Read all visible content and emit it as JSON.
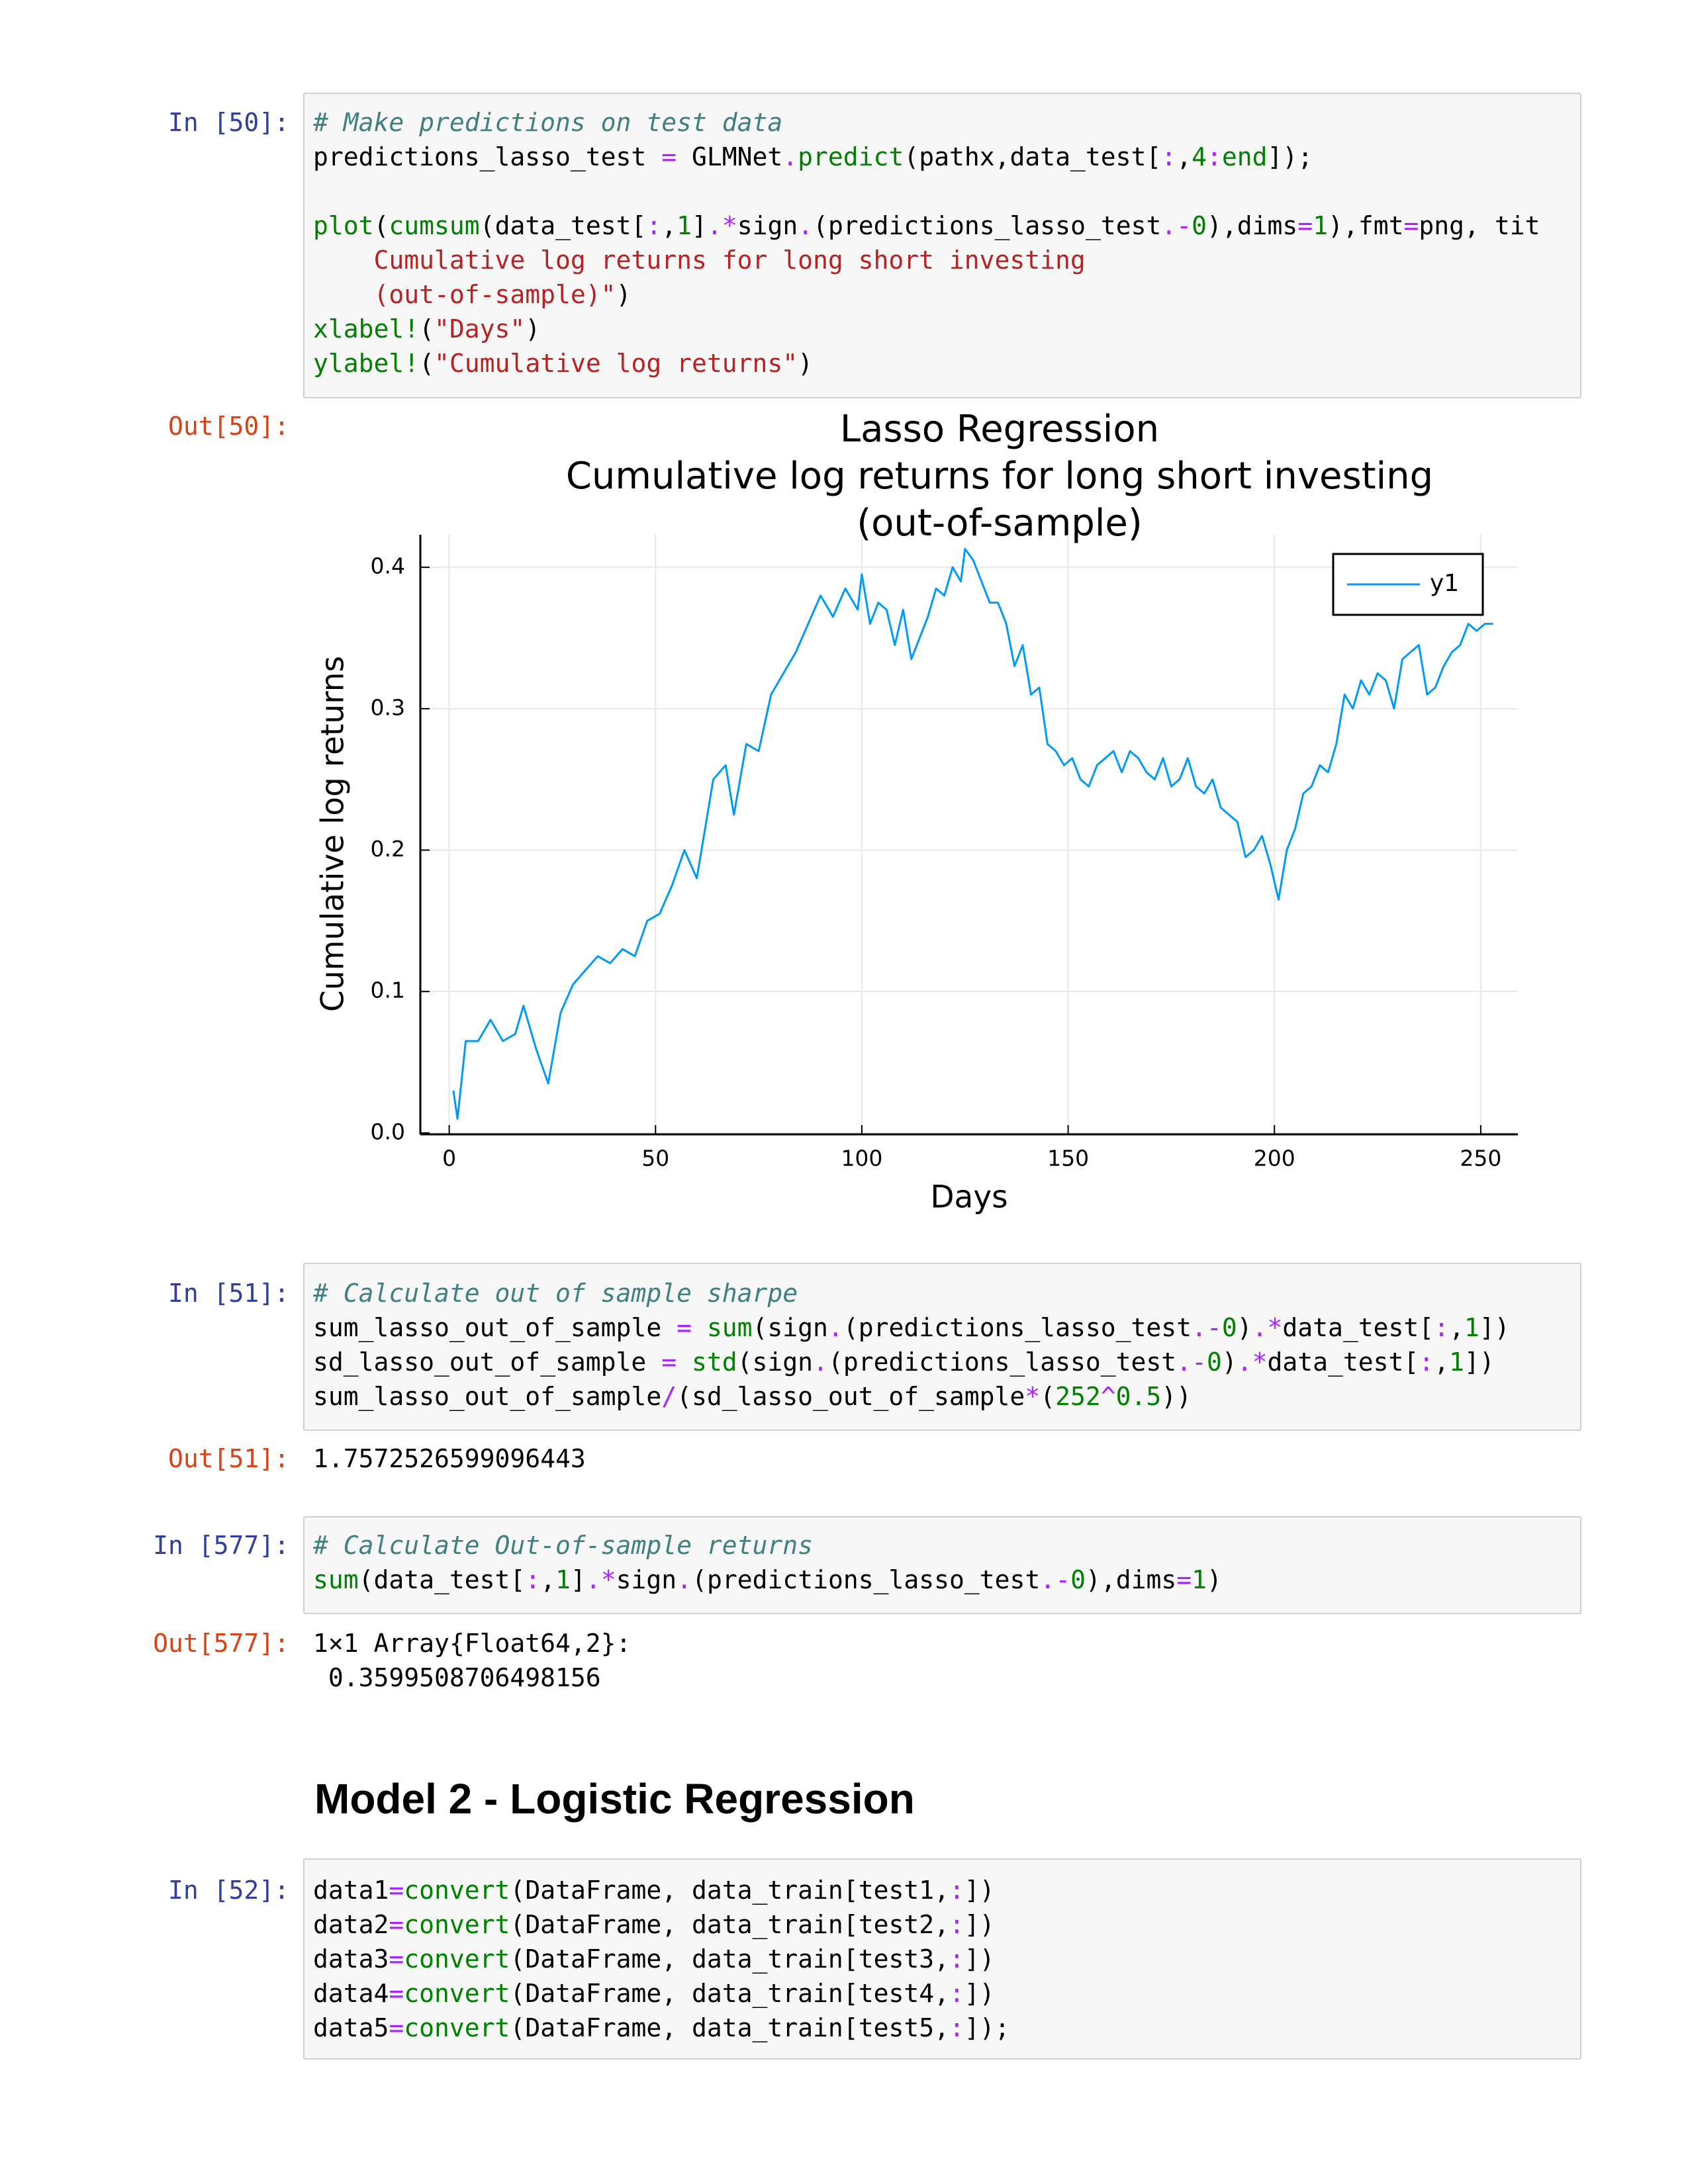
{
  "cells": [
    {
      "prompt": "In [50]:",
      "code": [
        [
          "# Make predictions on test data",
          "predictions_lasso_test = GLMNet.predict(pathx,data_test[:,4:end]);"
        ],
        [
          "plot(cumsum(data_test[:,1].*sign.(predictions_lasso_test.-0),dims=1),fmt=png, tit",
          "    Cumulative log returns for long short investing",
          "    (out-of-sample)\")",
          "xlabel!(\"Days\")",
          "ylabel!(\"Cumulative log returns\")"
        ]
      ],
      "out_prompt": "Out[50]:"
    },
    {
      "prompt": "In [51]:",
      "code": [
        [
          "# Calculate out of sample sharpe",
          "sum_lasso_out_of_sample = sum(sign.(predictions_lasso_test.-0).*data_test[:,1])",
          "sd_lasso_out_of_sample = std(sign.(predictions_lasso_test.-0).*data_test[:,1])",
          "sum_lasso_out_of_sample/(sd_lasso_out_of_sample*(252^0.5))"
        ]
      ],
      "out_prompt": "Out[51]:",
      "output": [
        "1.7572526599096443"
      ]
    },
    {
      "prompt": "In [577]:",
      "code": [
        [
          "# Calculate Out-of-sample returns",
          "sum(data_test[:,1].*sign.(predictions_lasso_test.-0),dims=1)"
        ]
      ],
      "out_prompt": "Out[577]:",
      "output": [
        "1×1 Array{Float64,2}:",
        " 0.3599508706498156"
      ]
    },
    {
      "prompt": "In [52]:",
      "code": [
        [
          "data1=convert(DataFrame, data_train[test1,:])",
          "data2=convert(DataFrame, data_train[test2,:])",
          "data3=convert(DataFrame, data_train[test3,:])",
          "data4=convert(DataFrame, data_train[test4,:])",
          "data5=convert(DataFrame, data_train[test5,:]);"
        ]
      ]
    }
  ],
  "heading": "Model 2 - Logistic Regression",
  "chart_data": {
    "type": "line",
    "title": [
      "Lasso Regression",
      "Cumulative log returns for long short investing",
      "(out-of-sample)"
    ],
    "xlabel": "Days",
    "ylabel": "Cumulative log returns",
    "x": [
      1,
      2,
      4,
      7,
      10,
      13,
      16,
      18,
      21,
      24,
      27,
      30,
      33,
      36,
      39,
      42,
      45,
      48,
      51,
      54,
      57,
      60,
      62,
      64,
      67,
      69,
      72,
      75,
      78,
      81,
      84,
      87,
      90,
      93,
      96,
      99,
      100,
      102,
      104,
      106,
      108,
      110,
      112,
      114,
      116,
      118,
      120,
      122,
      124,
      125,
      127,
      129,
      131,
      133,
      135,
      137,
      139,
      141,
      143,
      145,
      147,
      149,
      151,
      153,
      155,
      157,
      159,
      161,
      163,
      165,
      167,
      169,
      171,
      173,
      175,
      177,
      179,
      181,
      183,
      185,
      187,
      189,
      191,
      193,
      195,
      197,
      199,
      201,
      203,
      205,
      207,
      209,
      211,
      213,
      215,
      217,
      219,
      221,
      223,
      225,
      227,
      229,
      231,
      233,
      235,
      237,
      239,
      241,
      243,
      245,
      247,
      249,
      251,
      253
    ],
    "series": [
      {
        "name": "y1",
        "color": "#009af9",
        "values": [
          0.03,
          0.01,
          0.065,
          0.065,
          0.08,
          0.065,
          0.07,
          0.09,
          0.06,
          0.035,
          0.085,
          0.105,
          0.115,
          0.125,
          0.12,
          0.13,
          0.125,
          0.15,
          0.155,
          0.175,
          0.2,
          0.18,
          0.215,
          0.25,
          0.26,
          0.225,
          0.275,
          0.27,
          0.31,
          0.325,
          0.34,
          0.36,
          0.38,
          0.365,
          0.385,
          0.37,
          0.395,
          0.36,
          0.375,
          0.37,
          0.345,
          0.37,
          0.335,
          0.35,
          0.365,
          0.385,
          0.38,
          0.4,
          0.39,
          0.413,
          0.405,
          0.39,
          0.375,
          0.375,
          0.36,
          0.33,
          0.345,
          0.31,
          0.315,
          0.275,
          0.27,
          0.26,
          0.265,
          0.25,
          0.245,
          0.26,
          0.265,
          0.27,
          0.255,
          0.27,
          0.265,
          0.255,
          0.25,
          0.265,
          0.245,
          0.25,
          0.265,
          0.245,
          0.24,
          0.25,
          0.23,
          0.225,
          0.22,
          0.195,
          0.2,
          0.21,
          0.19,
          0.165,
          0.2,
          0.215,
          0.24,
          0.245,
          0.26,
          0.255,
          0.275,
          0.31,
          0.3,
          0.32,
          0.31,
          0.325,
          0.32,
          0.3,
          0.335,
          0.34,
          0.345,
          0.31,
          0.315,
          0.33,
          0.34,
          0.345,
          0.36,
          0.355,
          0.36,
          0.36
        ]
      }
    ],
    "xlim": [
      -7,
      259
    ],
    "ylim": [
      -0.001,
      0.423
    ],
    "xticks": [
      0,
      50,
      100,
      150,
      200,
      250
    ],
    "yticks": [
      {
        "value": 0,
        "label": "0.0"
      },
      0.1,
      0.2,
      0.3,
      0.4
    ],
    "grid": true,
    "legend": "top-right"
  }
}
